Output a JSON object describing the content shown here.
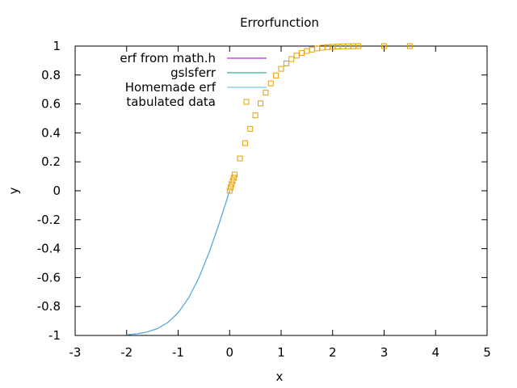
{
  "chart_data": {
    "type": "line",
    "title": "Errorfunction",
    "xlabel": "x",
    "ylabel": "y",
    "xlim": [
      -3,
      5
    ],
    "ylim": [
      -1,
      1
    ],
    "xticks": [
      -3,
      -2,
      -1,
      0,
      1,
      2,
      3,
      4,
      5
    ],
    "yticks": [
      -1,
      -0.8,
      -0.6,
      -0.4,
      -0.2,
      0,
      0.2,
      0.4,
      0.6,
      0.8,
      1
    ],
    "grid": false,
    "legend_position": "top-left",
    "series": [
      {
        "name": "erf from math.h",
        "style": "line",
        "color": "#9400d3",
        "x": [
          -2.0,
          -1.8,
          -1.6,
          -1.4,
          -1.2,
          -1.0,
          -0.8,
          -0.6,
          -0.4,
          -0.2,
          0.0
        ],
        "y": [
          -0.995,
          -0.989,
          -0.976,
          -0.952,
          -0.91,
          -0.843,
          -0.742,
          -0.604,
          -0.428,
          -0.223,
          0.0
        ]
      },
      {
        "name": "gslsferr",
        "style": "line",
        "color": "#009e73",
        "x": [
          -2.0,
          -1.8,
          -1.6,
          -1.4,
          -1.2,
          -1.0,
          -0.8,
          -0.6,
          -0.4,
          -0.2,
          0.0
        ],
        "y": [
          -0.995,
          -0.989,
          -0.976,
          -0.952,
          -0.91,
          -0.843,
          -0.742,
          -0.604,
          -0.428,
          -0.223,
          0.0
        ]
      },
      {
        "name": "Homemade erf",
        "style": "line",
        "color": "#56b4e9",
        "x": [
          -2.0,
          -1.8,
          -1.6,
          -1.4,
          -1.2,
          -1.0,
          -0.8,
          -0.6,
          -0.4,
          -0.2,
          0.0
        ],
        "y": [
          -0.995,
          -0.989,
          -0.976,
          -0.952,
          -0.91,
          -0.843,
          -0.742,
          -0.604,
          -0.428,
          -0.223,
          0.0
        ]
      },
      {
        "name": "tabulated data",
        "style": "points",
        "color": "#e69f00",
        "x": [
          0.0,
          0.02,
          0.04,
          0.06,
          0.08,
          0.1,
          0.2,
          0.3,
          0.4,
          0.5,
          0.6,
          0.7,
          0.8,
          0.9,
          1.0,
          1.1,
          1.2,
          1.3,
          1.4,
          1.5,
          1.6,
          1.7,
          1.8,
          1.9,
          2.0,
          2.1,
          2.2,
          2.3,
          2.4,
          2.5,
          3.0,
          3.5
        ],
        "y": [
          0.0,
          0.023,
          0.045,
          0.068,
          0.09,
          0.112,
          0.223,
          0.329,
          0.428,
          0.521,
          0.604,
          0.678,
          0.742,
          0.797,
          0.843,
          0.88,
          0.91,
          0.934,
          0.952,
          0.966,
          0.976,
          0.984,
          0.989,
          0.993,
          0.995,
          0.997,
          0.998,
          0.999,
          0.999,
          1.0,
          1.0,
          1.0
        ]
      }
    ]
  }
}
